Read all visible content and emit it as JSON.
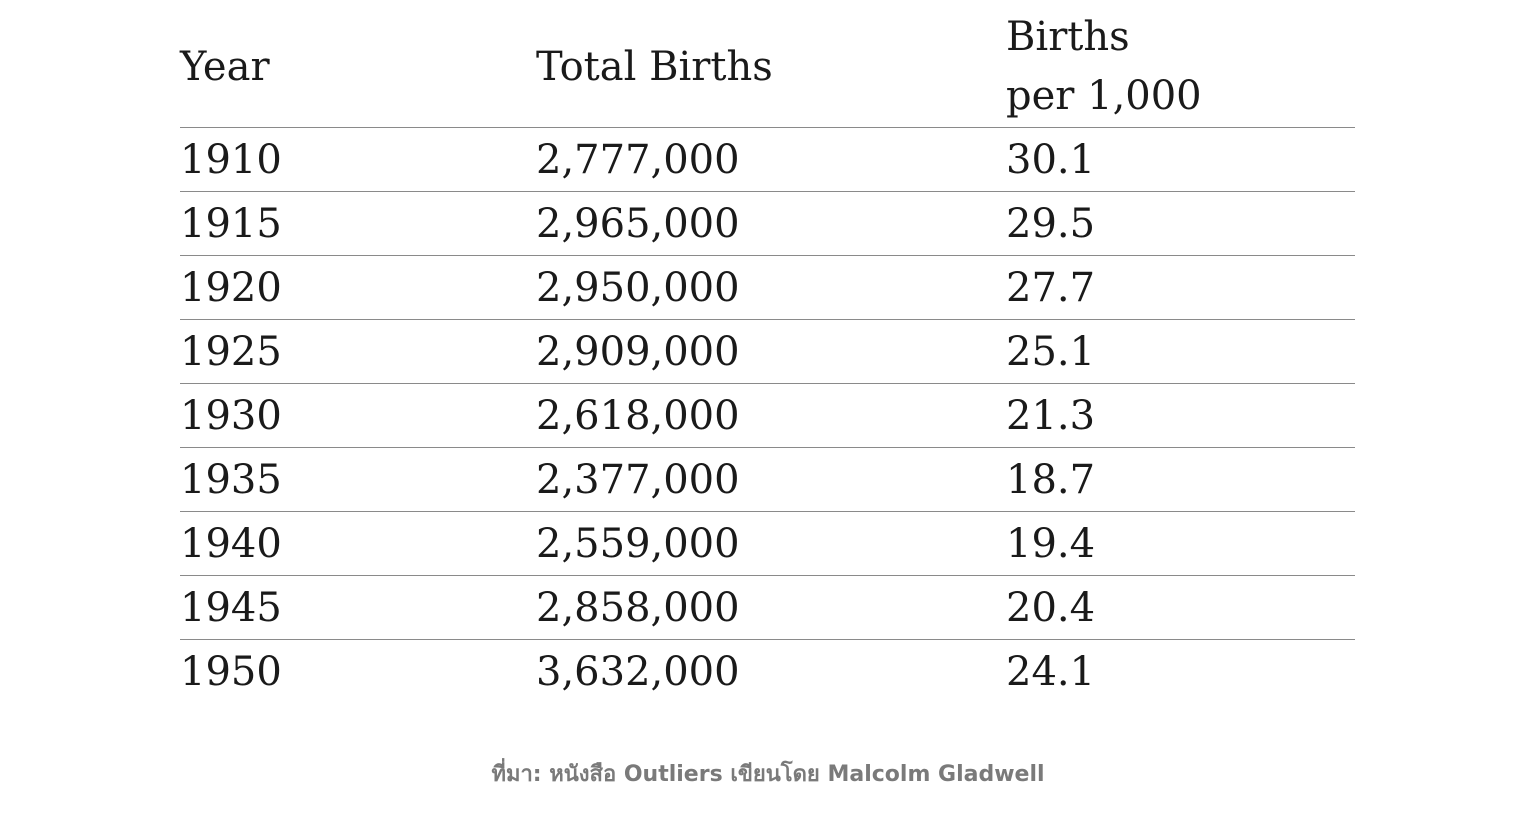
{
  "chart_data": {
    "type": "table",
    "columns": [
      "Year",
      "Total Births",
      "Births per 1,000"
    ],
    "header_rate_lines": [
      "Births",
      "per 1,000"
    ],
    "rows": [
      [
        "1910",
        "2,777,000",
        "30.1"
      ],
      [
        "1915",
        "2,965,000",
        "29.5"
      ],
      [
        "1920",
        "2,950,000",
        "27.7"
      ],
      [
        "1925",
        "2,909,000",
        "25.1"
      ],
      [
        "1930",
        "2,618,000",
        "21.3"
      ],
      [
        "1935",
        "2,377,000",
        "18.7"
      ],
      [
        "1940",
        "2,559,000",
        "19.4"
      ],
      [
        "1945",
        "2,858,000",
        "20.4"
      ],
      [
        "1950",
        "3,632,000",
        "24.1"
      ]
    ]
  },
  "source": "ที่มา: หนังสือ Outliers เขียนโดย Malcolm Gladwell",
  "colors": {
    "text": "#1a1a1a",
    "rule": "#8a8a8a",
    "source_text": "#7a7a7a"
  }
}
